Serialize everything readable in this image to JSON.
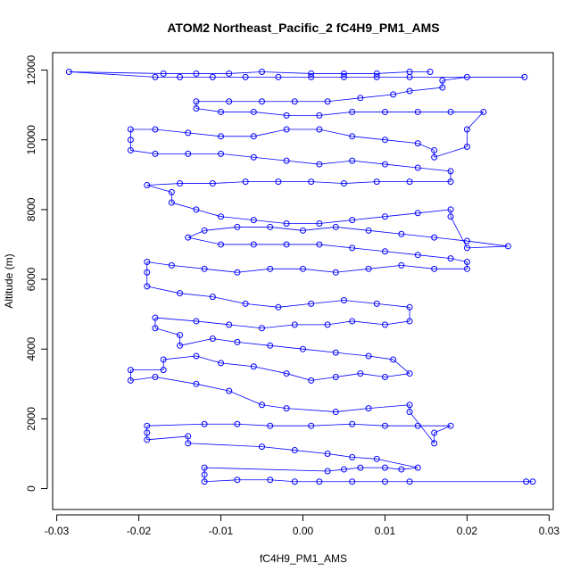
{
  "chart_data": {
    "type": "scatter",
    "title": "ATOM2 Northeast_Pacific_2 fC4H9_PM1_AMS",
    "xlabel": "fC4H9_PM1_AMS",
    "ylabel": "Altitude (m)",
    "xlim": [
      -0.0305,
      0.0305
    ],
    "ylim": [
      -600,
      12500
    ],
    "xticks": [
      -0.03,
      -0.02,
      -0.01,
      0.0,
      0.01,
      0.02,
      0.03
    ],
    "xtick_labels": [
      "-0.03",
      "-0.02",
      "-0.01",
      "0.00",
      "0.01",
      "0.02",
      "0.03"
    ],
    "yticks": [
      0,
      2000,
      4000,
      6000,
      8000,
      10000,
      12000
    ],
    "ytick_labels": [
      "0",
      "2000",
      "4000",
      "6000",
      "8000",
      "10000",
      "12000"
    ],
    "grid": false,
    "legend": "none",
    "marker": "open-circle",
    "series_color": "#0000ff",
    "series": [
      {
        "points": [
          [
            0.028,
            200
          ],
          [
            0.0272,
            200
          ],
          [
            0.013,
            200
          ],
          [
            0.01,
            200
          ],
          [
            0.006,
            200
          ],
          [
            0.002,
            200
          ],
          [
            -0.001,
            200
          ],
          [
            -0.004,
            250
          ],
          [
            -0.008,
            250
          ],
          [
            -0.012,
            200
          ],
          [
            -0.012,
            400
          ],
          [
            -0.012,
            600
          ],
          [
            0.003,
            500
          ],
          [
            0.005,
            550
          ],
          [
            0.007,
            600
          ],
          [
            0.01,
            600
          ],
          [
            0.012,
            550
          ],
          [
            0.014,
            600
          ],
          [
            0.009,
            850
          ],
          [
            0.006,
            900
          ],
          [
            0.003,
            1000
          ],
          [
            -0.001,
            1100
          ],
          [
            -0.005,
            1200
          ],
          [
            -0.014,
            1300
          ],
          [
            -0.014,
            1500
          ],
          [
            -0.019,
            1400
          ],
          [
            -0.019,
            1600
          ],
          [
            -0.019,
            1800
          ],
          [
            -0.012,
            1850
          ],
          [
            -0.008,
            1850
          ],
          [
            -0.004,
            1800
          ],
          [
            0.001,
            1800
          ],
          [
            0.006,
            1850
          ],
          [
            0.01,
            1800
          ],
          [
            0.014,
            1800
          ],
          [
            0.018,
            1800
          ],
          [
            0.016,
            1600
          ],
          [
            0.016,
            1300
          ],
          [
            0.013,
            2200
          ],
          [
            0.013,
            2400
          ],
          [
            0.008,
            2300
          ],
          [
            0.004,
            2200
          ],
          [
            -0.002,
            2300
          ],
          [
            -0.005,
            2400
          ],
          [
            -0.009,
            2800
          ],
          [
            -0.013,
            3000
          ],
          [
            -0.018,
            3200
          ],
          [
            -0.021,
            3100
          ],
          [
            -0.021,
            3400
          ],
          [
            -0.017,
            3400
          ],
          [
            -0.017,
            3700
          ],
          [
            -0.013,
            3800
          ],
          [
            -0.01,
            3600
          ],
          [
            -0.006,
            3500
          ],
          [
            -0.002,
            3300
          ],
          [
            0.001,
            3100
          ],
          [
            0.004,
            3200
          ],
          [
            0.007,
            3300
          ],
          [
            0.01,
            3200
          ],
          [
            0.013,
            3300
          ],
          [
            0.011,
            3700
          ],
          [
            0.008,
            3800
          ],
          [
            0.004,
            3900
          ],
          [
            0.0,
            4000
          ],
          [
            -0.004,
            4100
          ],
          [
            -0.008,
            4200
          ],
          [
            -0.011,
            4300
          ],
          [
            -0.015,
            4100
          ],
          [
            -0.015,
            4400
          ],
          [
            -0.018,
            4600
          ],
          [
            -0.018,
            4900
          ],
          [
            -0.013,
            4800
          ],
          [
            -0.009,
            4700
          ],
          [
            -0.005,
            4600
          ],
          [
            -0.001,
            4700
          ],
          [
            0.003,
            4700
          ],
          [
            0.006,
            4800
          ],
          [
            0.01,
            4700
          ],
          [
            0.013,
            4800
          ],
          [
            0.013,
            5200
          ],
          [
            0.009,
            5300
          ],
          [
            0.005,
            5400
          ],
          [
            0.001,
            5300
          ],
          [
            -0.003,
            5200
          ],
          [
            -0.007,
            5300
          ],
          [
            -0.011,
            5500
          ],
          [
            -0.015,
            5600
          ],
          [
            -0.019,
            5800
          ],
          [
            -0.019,
            6200
          ],
          [
            -0.019,
            6500
          ],
          [
            -0.016,
            6400
          ],
          [
            -0.012,
            6300
          ],
          [
            -0.008,
            6200
          ],
          [
            -0.004,
            6300
          ],
          [
            0.0,
            6300
          ],
          [
            0.004,
            6200
          ],
          [
            0.008,
            6300
          ],
          [
            0.012,
            6400
          ],
          [
            0.016,
            6300
          ],
          [
            0.02,
            6300
          ],
          [
            0.02,
            6500
          ],
          [
            0.018,
            6600
          ],
          [
            0.014,
            6700
          ],
          [
            0.01,
            6800
          ],
          [
            0.006,
            6900
          ],
          [
            0.002,
            7000
          ],
          [
            -0.002,
            7000
          ],
          [
            -0.006,
            7000
          ],
          [
            -0.01,
            7000
          ],
          [
            -0.014,
            7200
          ],
          [
            -0.012,
            7400
          ],
          [
            -0.008,
            7500
          ],
          [
            -0.004,
            7500
          ],
          [
            0.0,
            7400
          ],
          [
            0.004,
            7500
          ],
          [
            0.008,
            7400
          ],
          [
            0.012,
            7300
          ],
          [
            0.016,
            7200
          ],
          [
            0.02,
            7100
          ],
          [
            0.025,
            6950
          ],
          [
            0.02,
            6900
          ],
          [
            0.018,
            7800
          ],
          [
            0.018,
            8000
          ],
          [
            0.014,
            7900
          ],
          [
            0.01,
            7800
          ],
          [
            0.006,
            7700
          ],
          [
            0.002,
            7600
          ],
          [
            -0.002,
            7600
          ],
          [
            -0.006,
            7700
          ],
          [
            -0.01,
            7800
          ],
          [
            -0.013,
            8000
          ],
          [
            -0.016,
            8200
          ],
          [
            -0.016,
            8500
          ],
          [
            -0.019,
            8700
          ],
          [
            -0.015,
            8750
          ],
          [
            -0.011,
            8750
          ],
          [
            -0.007,
            8800
          ],
          [
            -0.003,
            8800
          ],
          [
            0.001,
            8800
          ],
          [
            0.005,
            8750
          ],
          [
            0.009,
            8800
          ],
          [
            0.013,
            8800
          ],
          [
            0.018,
            8800
          ],
          [
            0.018,
            9100
          ],
          [
            0.014,
            9200
          ],
          [
            0.01,
            9300
          ],
          [
            0.006,
            9400
          ],
          [
            0.002,
            9300
          ],
          [
            -0.002,
            9400
          ],
          [
            -0.006,
            9500
          ],
          [
            -0.01,
            9600
          ],
          [
            -0.014,
            9600
          ],
          [
            -0.018,
            9600
          ],
          [
            -0.021,
            9700
          ],
          [
            -0.021,
            10000
          ],
          [
            -0.021,
            10300
          ],
          [
            -0.018,
            10300
          ],
          [
            -0.014,
            10200
          ],
          [
            -0.01,
            10100
          ],
          [
            -0.006,
            10100
          ],
          [
            -0.002,
            10300
          ],
          [
            0.002,
            10300
          ],
          [
            0.006,
            10100
          ],
          [
            0.01,
            10000
          ],
          [
            0.014,
            9900
          ],
          [
            0.016,
            9700
          ],
          [
            0.016,
            9500
          ],
          [
            0.02,
            9800
          ],
          [
            0.02,
            10300
          ],
          [
            0.022,
            10800
          ],
          [
            0.018,
            10800
          ],
          [
            0.014,
            10800
          ],
          [
            0.01,
            10800
          ],
          [
            0.006,
            10800
          ],
          [
            0.002,
            10700
          ],
          [
            -0.002,
            10700
          ],
          [
            -0.006,
            10800
          ],
          [
            -0.01,
            10800
          ],
          [
            -0.013,
            10900
          ],
          [
            -0.013,
            11100
          ],
          [
            -0.009,
            11100
          ],
          [
            -0.005,
            11100
          ],
          [
            -0.001,
            11100
          ],
          [
            0.003,
            11100
          ],
          [
            0.007,
            11200
          ],
          [
            0.011,
            11300
          ],
          [
            0.013,
            11400
          ],
          [
            0.017,
            11500
          ],
          [
            0.017,
            11700
          ],
          [
            0.02,
            11800
          ],
          [
            0.027,
            11800
          ],
          [
            0.013,
            11800
          ],
          [
            0.009,
            11800
          ],
          [
            0.005,
            11800
          ],
          [
            0.001,
            11800
          ],
          [
            -0.003,
            11800
          ],
          [
            -0.007,
            11800
          ],
          [
            -0.011,
            11800
          ],
          [
            -0.015,
            11800
          ],
          [
            -0.018,
            11800
          ],
          [
            -0.0285,
            11950
          ],
          [
            -0.017,
            11900
          ],
          [
            -0.013,
            11900
          ],
          [
            -0.009,
            11900
          ],
          [
            -0.005,
            11950
          ],
          [
            0.001,
            11900
          ],
          [
            0.005,
            11900
          ],
          [
            0.009,
            11900
          ],
          [
            0.013,
            11950
          ],
          [
            0.0155,
            11950
          ]
        ]
      }
    ]
  }
}
